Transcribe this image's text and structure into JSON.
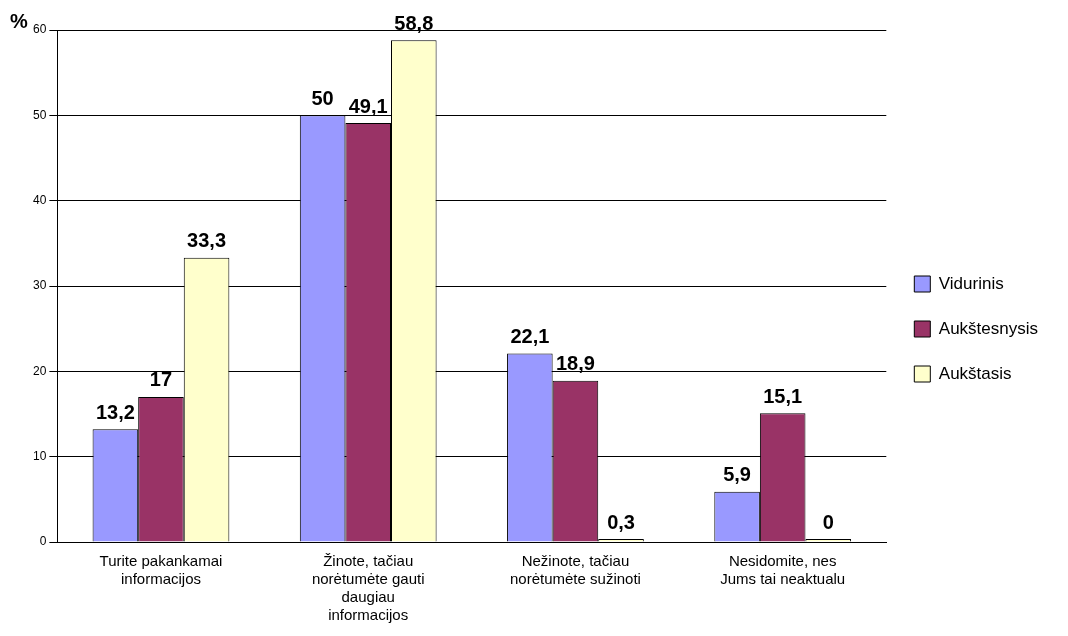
{
  "chart_data": {
    "type": "bar",
    "ylabel": "%",
    "categories": [
      "Turite pakankamai informacijos",
      "Žinote, tačiau norėtumėte gauti daugiau informacijos",
      "Nežinote, tačiau norėtumėte sužinoti",
      "Nesidomite, nes Jums tai neaktualu"
    ],
    "series": [
      {
        "name": "Vidurinis",
        "color": "#9999ff",
        "values": [
          13.2,
          50,
          22.1,
          5.9
        ],
        "value_labels": [
          "13,2",
          "50",
          "22,1",
          "5,9"
        ]
      },
      {
        "name": "Aukštesnysis",
        "color": "#993366",
        "values": [
          17,
          49.1,
          18.9,
          15.1
        ],
        "value_labels": [
          "17",
          "49,1",
          "18,9",
          "15,1"
        ]
      },
      {
        "name": "Aukštasis",
        "color": "#ffffcc",
        "values": [
          33.3,
          58.8,
          0.3,
          0
        ],
        "value_labels": [
          "33,3",
          "58,8",
          "0,3",
          "0"
        ]
      }
    ],
    "ylim": [
      0,
      60
    ],
    "yticks": [
      0,
      10,
      20,
      30,
      40,
      50,
      60
    ],
    "grid": "y",
    "legend": "right"
  }
}
